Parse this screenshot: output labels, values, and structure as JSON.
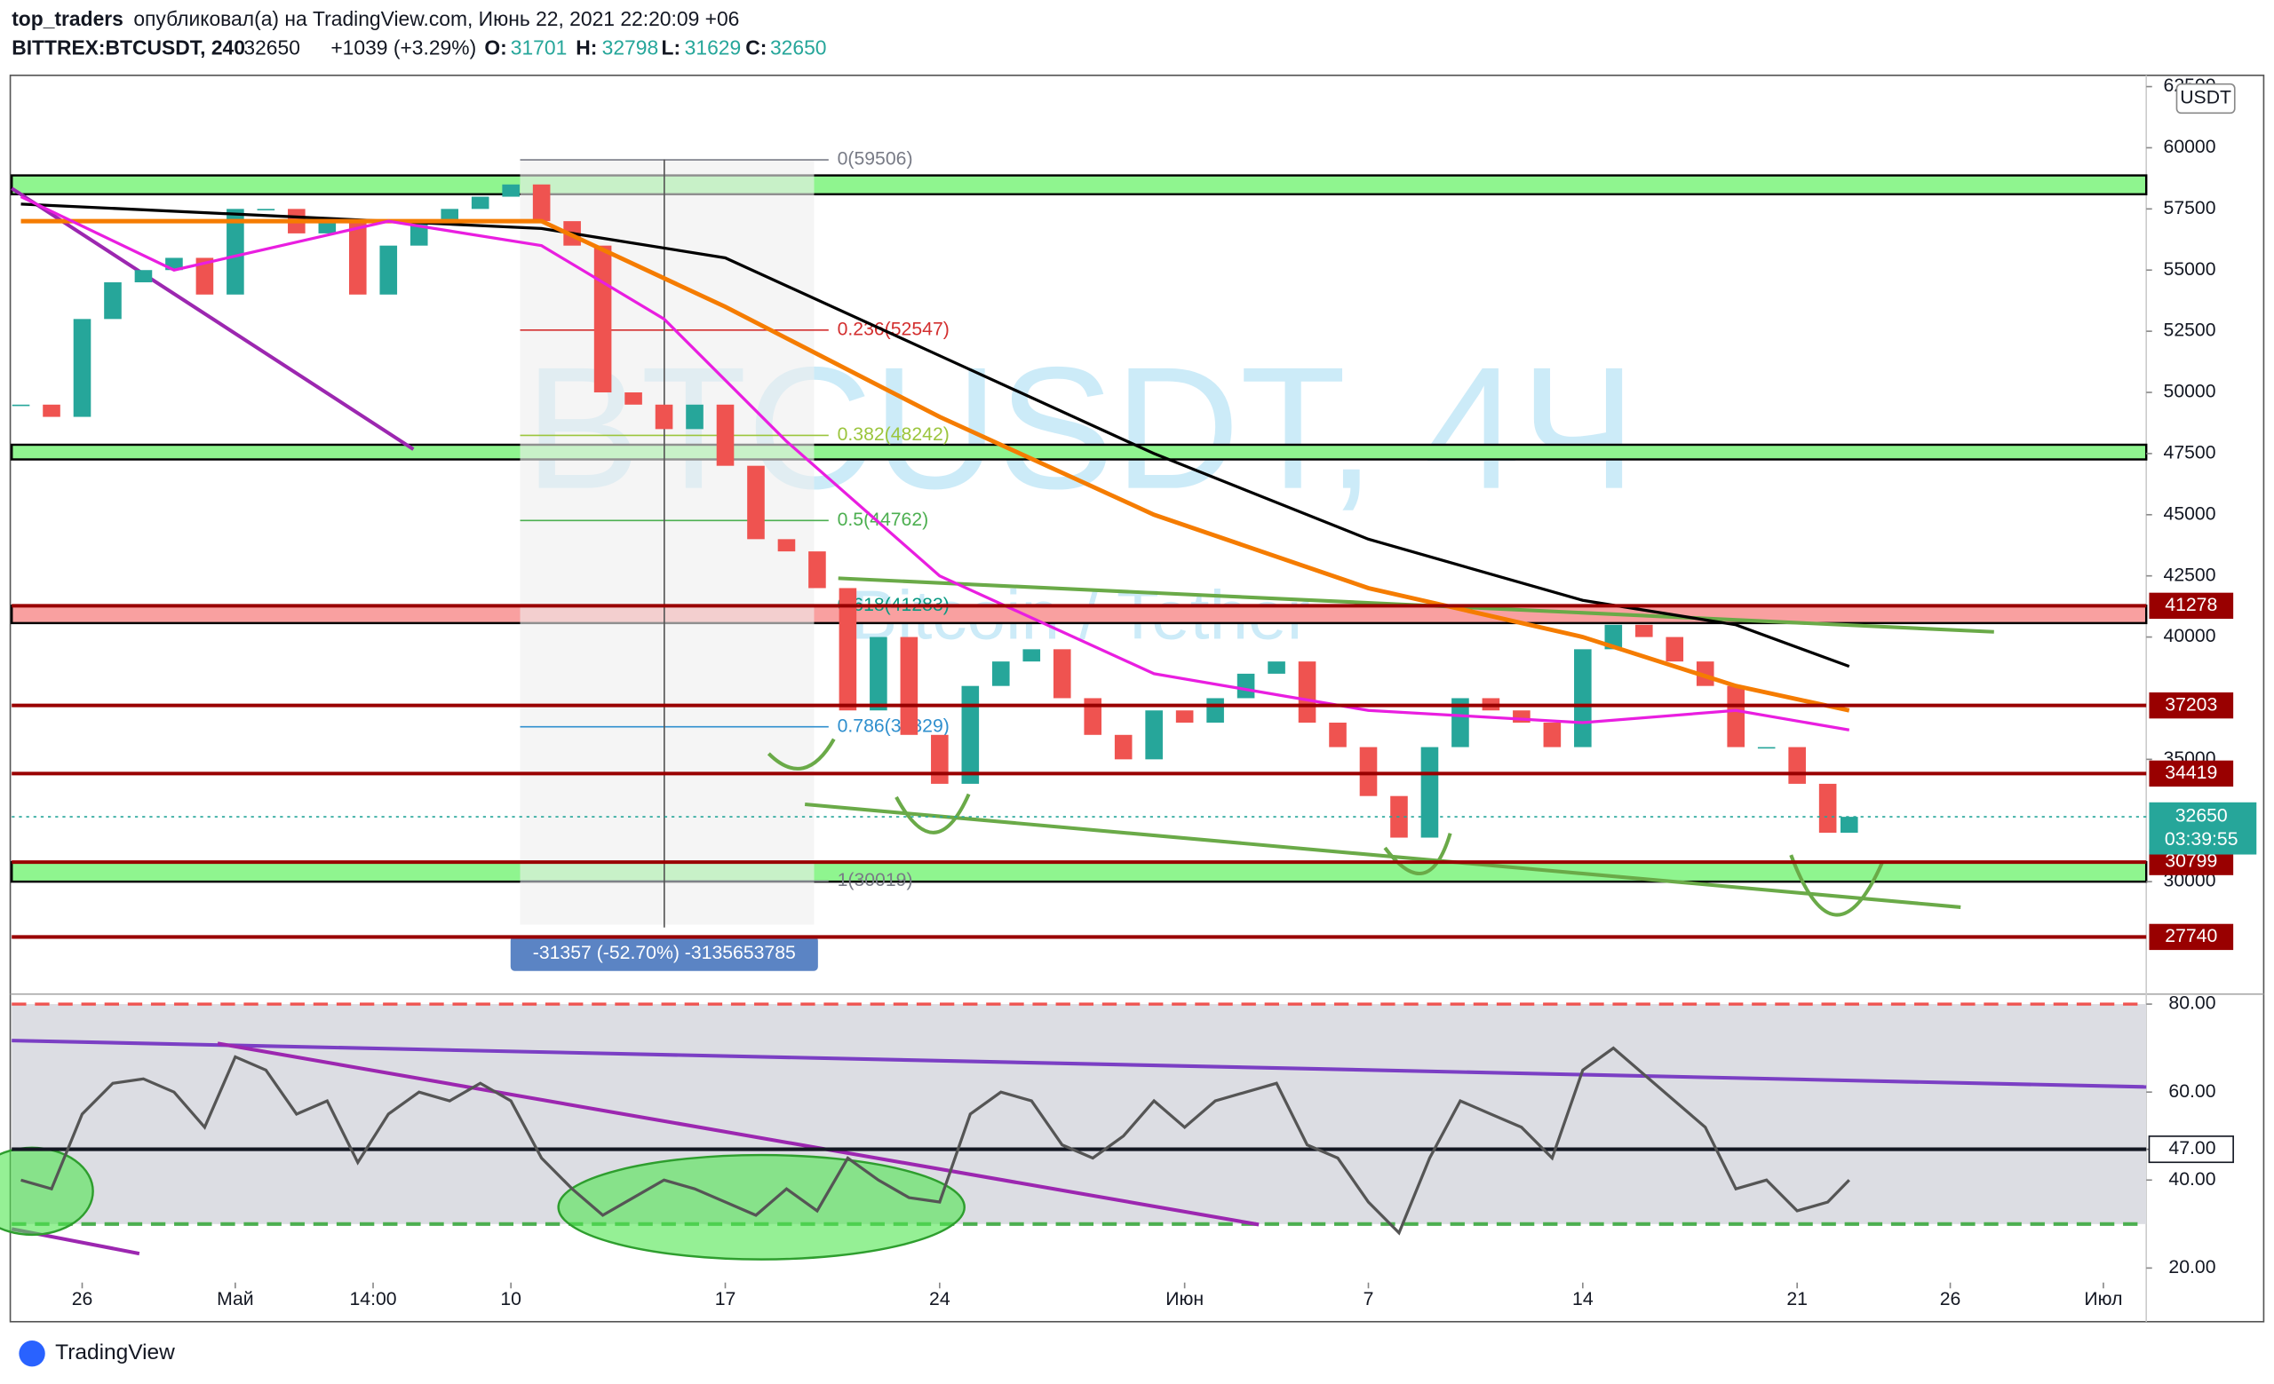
{
  "header": {
    "author": "top_traders",
    "published": "опубликовал(а) на TradingView.com, Июнь 22, 2021 22:20:09 +06",
    "symbol": "BITTREX:BTCUSDT, 240",
    "last": "32650",
    "change": "+1039 (+3.29%)",
    "o_label": "O:",
    "open": "31701",
    "h_label": "H:",
    "high": "32798",
    "l_label": "L:",
    "low": "31629",
    "c_label": "C:",
    "close": "32650"
  },
  "chart_data": [
    {
      "type": "candle",
      "watermark": "BTCUSDT, 4Ч",
      "watermark_sub": "Bitcoin / Tether",
      "currency": "USDT",
      "xlim": [
        22.7,
        92.4
      ],
      "xticks": [
        {
          "value": 25,
          "label": "26"
        },
        {
          "value": 30,
          "label": "Май"
        },
        {
          "value": 34.5,
          "label": "14:00"
        },
        {
          "value": 39,
          "label": "10"
        },
        {
          "value": 46,
          "label": "17"
        },
        {
          "value": 53,
          "label": "24"
        },
        {
          "value": 61,
          "label": "Июн"
        },
        {
          "value": 67,
          "label": "7"
        },
        {
          "value": 74,
          "label": "14"
        },
        {
          "value": 81,
          "label": "21"
        },
        {
          "value": 86,
          "label": "26"
        },
        {
          "value": 91,
          "label": "Июл"
        }
      ],
      "ylim": [
        25460,
        62960
      ],
      "yticks": [
        62500,
        60000,
        57500,
        55000,
        52500,
        50000,
        47500,
        45000,
        42500,
        40000,
        35000,
        30000
      ],
      "up_color": "#26a69a",
      "down_color": "#ef5350",
      "series": [
        {
          "color": "#26a69a",
          "x": [
            23,
            24,
            25,
            26,
            27,
            28,
            29,
            30,
            31,
            32,
            33,
            34,
            35,
            36,
            37,
            38,
            39,
            40,
            41,
            42,
            43,
            44,
            45,
            46,
            47,
            48,
            49,
            50,
            51,
            52,
            53,
            54,
            55,
            56,
            57,
            58,
            59,
            60,
            61,
            62,
            63,
            64,
            65,
            66,
            67,
            68,
            69,
            70,
            71,
            72,
            73,
            74,
            75,
            76,
            77,
            78,
            79,
            80,
            81,
            82,
            82.7
          ],
          "values": [
            49500,
            49000,
            53000,
            54500,
            55000,
            55500,
            54000,
            57500,
            57500,
            56500,
            57000,
            54000,
            56000,
            57000,
            57500,
            58000,
            58500,
            57000,
            56000,
            50000,
            49500,
            48500,
            49500,
            47000,
            44000,
            43500,
            42000,
            37000,
            40000,
            36000,
            34000,
            38000,
            39000,
            39500,
            37500,
            36000,
            35000,
            37000,
            36500,
            37500,
            38500,
            39000,
            36500,
            35500,
            33500,
            31800,
            35500,
            37500,
            37000,
            36500,
            35500,
            39500,
            40500,
            40000,
            39000,
            38000,
            35500,
            35500,
            34000,
            32000,
            32650
          ]
        },
        {
          "color": "#000000",
          "x": [
            23,
            40,
            46,
            53,
            60,
            67,
            74,
            79,
            82.7
          ],
          "values": [
            57700,
            56700,
            55500,
            51500,
            47500,
            44000,
            41500,
            40500,
            38800
          ]
        },
        {
          "color": "#f57c00",
          "x": [
            23,
            40,
            46,
            53,
            60,
            67,
            74,
            79,
            82.7
          ],
          "values": [
            57000,
            57000,
            53500,
            49000,
            45000,
            42000,
            40000,
            38000,
            37000
          ]
        },
        {
          "color": "#e91ee0",
          "x": [
            23,
            28,
            35,
            40,
            44,
            48,
            53,
            60,
            67,
            74,
            79,
            82.7
          ],
          "values": [
            58000,
            55000,
            57000,
            56000,
            53000,
            48000,
            42500,
            38500,
            37000,
            36500,
            37000,
            36200
          ]
        }
      ],
      "zones": [
        {
          "low": 58100,
          "high": 58870,
          "color": "#8ff58f"
        },
        {
          "low": 47260,
          "high": 47860,
          "color": "#8ff58f"
        },
        {
          "low": 40570,
          "high": 41278,
          "color": "#f9a0a0"
        },
        {
          "low": 30000,
          "high": 30799,
          "color": "#8ff58f"
        }
      ],
      "levels": [
        {
          "value": 41278,
          "color": "#990000"
        },
        {
          "value": 37203,
          "color": "#990000"
        },
        {
          "value": 34419,
          "color": "#990000"
        },
        {
          "value": 30799,
          "color": "#990000"
        },
        {
          "value": 27740,
          "color": "#990000"
        }
      ],
      "last_price": {
        "value": 32650,
        "countdown": "03:39:55",
        "color": "#26a69a"
      },
      "fib": {
        "x": [
          39.3,
          48.9
        ],
        "levels": [
          {
            "label": "0(59506)",
            "value": 59506,
            "color": "#787b86"
          },
          {
            "label": "0.236(52547)",
            "value": 52547,
            "color": "#d32f2f"
          },
          {
            "label": "0.382(48242)",
            "value": 48242,
            "color": "#9bc53d"
          },
          {
            "label": "0.5(44762)",
            "value": 44762,
            "color": "#4caf50"
          },
          {
            "label": "0.618(41283)",
            "value": 41283,
            "color": "#089981"
          },
          {
            "label": "0.786(36329)",
            "value": 36329,
            "color": "#2f8fce"
          },
          {
            "label": "1(30019)",
            "value": 30019,
            "color": "#787b86"
          }
        ]
      },
      "measure": "-31357 (-52.70%) -3135653785"
    },
    {
      "type": "line",
      "xlim": [
        22.7,
        92.4
      ],
      "ylim": [
        16.7,
        81.6
      ],
      "yticks": [
        {
          "value": 80,
          "label": "80.00"
        },
        {
          "value": 60,
          "label": "60.00"
        },
        {
          "value": 47,
          "label": "47.00"
        },
        {
          "value": 40,
          "label": "40.00"
        },
        {
          "value": 20,
          "label": "20.00"
        }
      ],
      "band": [
        30,
        80
      ],
      "band_color": "#dcdde3",
      "series": [
        {
          "color": "#555555",
          "x": [
            23,
            24,
            25,
            26,
            27,
            28,
            29,
            30,
            31,
            32,
            33,
            34,
            35,
            36,
            37,
            38,
            39,
            40,
            41,
            42,
            43,
            44,
            45,
            46,
            47,
            48,
            49,
            50,
            51,
            52,
            53,
            54,
            55,
            56,
            57,
            58,
            59,
            60,
            61,
            62,
            63,
            64,
            65,
            66,
            67,
            68,
            69,
            70,
            71,
            72,
            73,
            74,
            75,
            76,
            77,
            78,
            79,
            80,
            81,
            82,
            82.7
          ],
          "values": [
            40,
            38,
            55,
            62,
            63,
            60,
            52,
            68,
            65,
            55,
            58,
            44,
            55,
            60,
            58,
            62,
            58,
            45,
            38,
            32,
            36,
            40,
            38,
            35,
            32,
            38,
            33,
            45,
            40,
            36,
            35,
            55,
            60,
            58,
            48,
            45,
            50,
            58,
            52,
            58,
            60,
            62,
            48,
            45,
            35,
            28,
            45,
            58,
            55,
            52,
            45,
            65,
            70,
            64,
            58,
            52,
            38,
            40,
            33,
            35,
            40
          ]
        }
      ]
    }
  ],
  "footer": {
    "brand": "TradingView"
  }
}
